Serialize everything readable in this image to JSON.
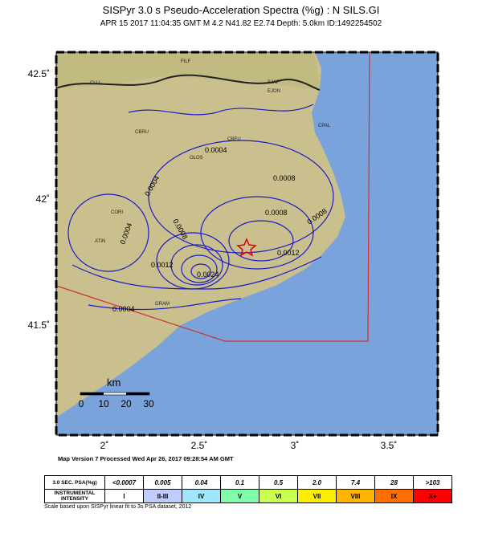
{
  "header": {
    "title": "SISPyr 3.0 s Pseudo-Acceleration Spectra (%g) : N SILS.GI",
    "subtitle": "APR 15 2017 11:04:35  GMT   M 4.2   N41.82 E2.74   Depth: 5.0km   ID:1492254502"
  },
  "map": {
    "lat_labels": [
      "42.5˚",
      "42˚",
      "41.5˚"
    ],
    "lon_labels": [
      "2˚",
      "2.5˚",
      "3˚",
      "3.5˚"
    ],
    "places": [
      "FILF",
      "CLLI",
      "SJAF",
      "EJON",
      "CBRU",
      "CPAL",
      "CBEU",
      "OLOS",
      "CORI",
      "ATIN",
      "GRAM"
    ],
    "contour_labels": [
      "0.0004",
      "0.0004",
      "0.0004",
      "0.0004",
      "0.0008",
      "0.0008",
      "0.0008",
      "0.0008",
      "0.0012",
      "0.0012",
      "0.0024"
    ],
    "scale": {
      "unit": "km",
      "labels": [
        "0",
        "10",
        "20",
        "30"
      ]
    }
  },
  "footer": "Map Version 7 Processed Wed Apr 26, 2017 09:28:54 AM GMT",
  "legend": {
    "row1_header": "3.0 SEC. PSA(%g)",
    "row1": [
      "<0.0007",
      "0.005",
      "0.04",
      "0.1",
      "0.5",
      "2.0",
      "7.4",
      "28",
      ">103"
    ],
    "row2_header": "INSTRUMENTAL INTENSITY",
    "row2": [
      "I",
      "II-III",
      "IV",
      "V",
      "VI",
      "VII",
      "VIII",
      "IX",
      "X+"
    ],
    "colors": [
      "#ffffff",
      "#bfccff",
      "#a0e6ff",
      "#80ffaa",
      "#c8ff50",
      "#ffee00",
      "#ffb400",
      "#ff6e00",
      "#ff0000"
    ]
  },
  "note": "Scale based upon SISPyr linear fit to 3s PSA dataset, 2012"
}
